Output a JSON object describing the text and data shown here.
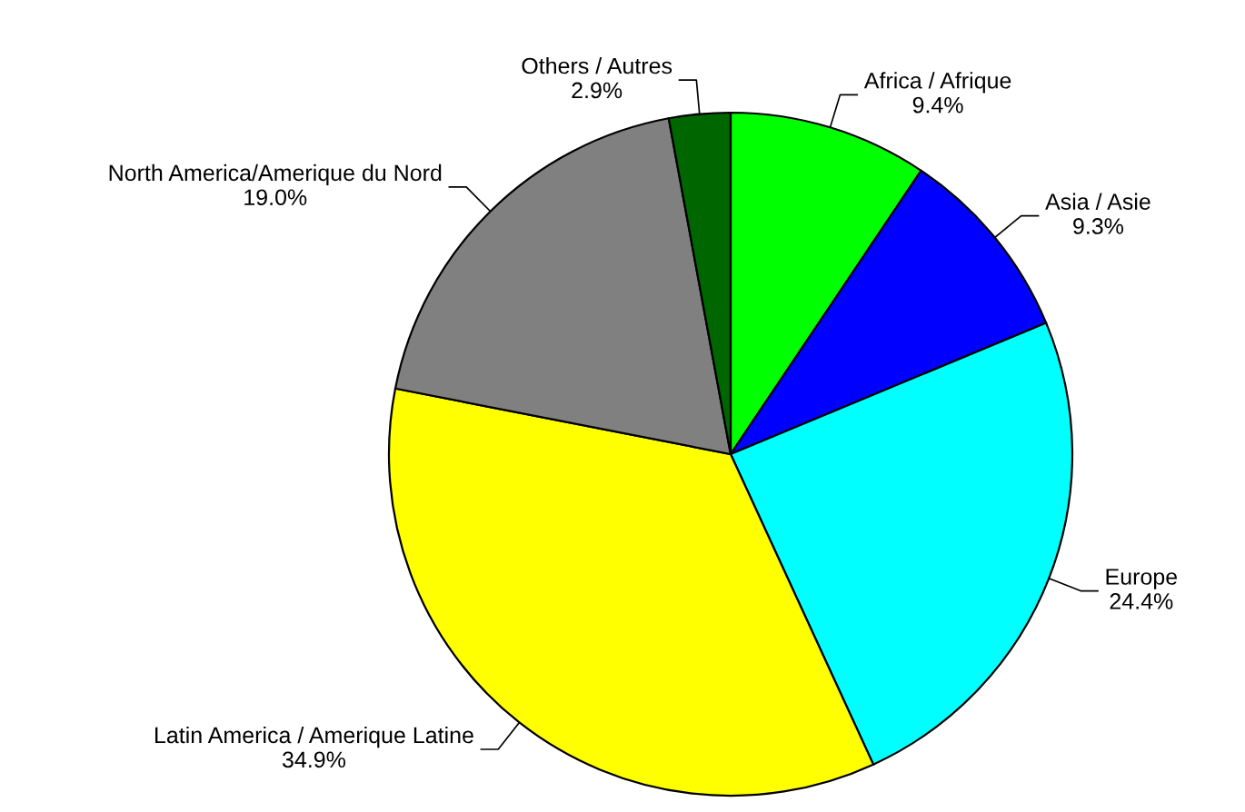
{
  "chart_data": {
    "type": "pie",
    "categories": [
      "Africa / Afrique",
      "Asia / Asie",
      "Europe",
      "Latin America / Amerique Latine",
      "North America/Amerique du Nord",
      "Others / Autres"
    ],
    "values": [
      9.4,
      9.3,
      24.4,
      34.9,
      19.0,
      2.9
    ],
    "value_labels": [
      "9.4%",
      "9.3%",
      "24.4%",
      "34.9%",
      "19.0%",
      "2.9%"
    ],
    "colors": [
      "#00ff00",
      "#0000ff",
      "#00ffff",
      "#ffff00",
      "#808080",
      "#006600"
    ]
  }
}
